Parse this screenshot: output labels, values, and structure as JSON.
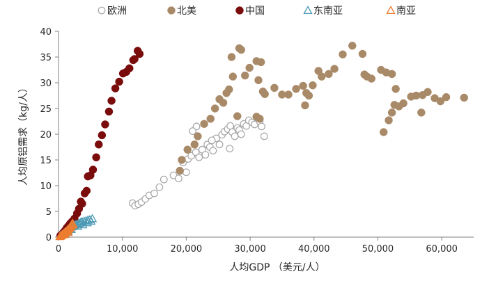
{
  "chart_data": {
    "type": "scatter",
    "title": "",
    "xlabel": "人均GDP （美元/人）",
    "ylabel": "人均原铝需求（kg/人）",
    "xlim": [
      0,
      65000
    ],
    "ylim": [
      0,
      40
    ],
    "x_ticks": [
      0,
      10000,
      20000,
      30000,
      40000,
      50000,
      60000
    ],
    "x_tick_labels": [
      "0",
      "10,000",
      "20,000",
      "30,000",
      "40,000",
      "50,000",
      "60,000"
    ],
    "y_ticks": [
      0,
      5,
      10,
      15,
      20,
      25,
      30,
      35,
      40
    ],
    "y_tick_labels": [
      "0",
      "5",
      "10",
      "15",
      "20",
      "25",
      "30",
      "35",
      "40"
    ],
    "grid": false,
    "legend_position": "top",
    "series": [
      {
        "name": "欧洲",
        "marker": "circle-open",
        "color": "#a6a6a6",
        "points": [
          [
            11600,
            6.6
          ],
          [
            12000,
            6.1
          ],
          [
            12500,
            6.4
          ],
          [
            13000,
            6.8
          ],
          [
            13600,
            7.4
          ],
          [
            14200,
            8.1
          ],
          [
            15000,
            8.5
          ],
          [
            15800,
            9.7
          ],
          [
            16500,
            11.2
          ],
          [
            18000,
            12.0
          ],
          [
            18800,
            11.4
          ],
          [
            20000,
            12.6
          ],
          [
            19500,
            14.5
          ],
          [
            20300,
            15.2
          ],
          [
            20800,
            15.8
          ],
          [
            21500,
            16.5
          ],
          [
            22000,
            15.5
          ],
          [
            22500,
            17.0
          ],
          [
            23000,
            16.0
          ],
          [
            23300,
            18.0
          ],
          [
            23700,
            17.5
          ],
          [
            24200,
            16.8
          ],
          [
            24700,
            19.2
          ],
          [
            25200,
            18.0
          ],
          [
            25600,
            19.9
          ],
          [
            26000,
            20.5
          ],
          [
            26500,
            21.0
          ],
          [
            26900,
            21.6
          ],
          [
            27200,
            20.4
          ],
          [
            27600,
            19.6
          ],
          [
            28000,
            21.2
          ],
          [
            28300,
            20.8
          ],
          [
            28600,
            20.0
          ],
          [
            29000,
            22.0
          ],
          [
            29400,
            21.6
          ],
          [
            29800,
            22.7
          ],
          [
            30300,
            22.3
          ],
          [
            30700,
            21.9
          ],
          [
            31100,
            23.1
          ],
          [
            31500,
            22.5
          ],
          [
            31800,
            21.5
          ],
          [
            32200,
            19.6
          ],
          [
            21600,
            21.5
          ],
          [
            26800,
            17.2
          ],
          [
            21000,
            20.6
          ],
          [
            24000,
            18.8
          ]
        ]
      },
      {
        "name": "北美",
        "marker": "circle-filled",
        "color": "#a98a68",
        "points": [
          [
            19000,
            12.9
          ],
          [
            19300,
            15.0
          ],
          [
            20200,
            17.0
          ],
          [
            21300,
            18.0
          ],
          [
            21800,
            19.6
          ],
          [
            22800,
            22.0
          ],
          [
            23800,
            23.0
          ],
          [
            24500,
            25.0
          ],
          [
            25200,
            26.8
          ],
          [
            25800,
            26.1
          ],
          [
            26300,
            28.0
          ],
          [
            26700,
            28.7
          ],
          [
            27300,
            31.2
          ],
          [
            28000,
            23.5
          ],
          [
            28300,
            36.7
          ],
          [
            28600,
            36.4
          ],
          [
            29200,
            31.4
          ],
          [
            29900,
            32.9
          ],
          [
            31000,
            34.2
          ],
          [
            31300,
            30.5
          ],
          [
            31700,
            34.0
          ],
          [
            32000,
            28.3
          ],
          [
            31000,
            23.4
          ],
          [
            32300,
            27.8
          ],
          [
            33800,
            29.0
          ],
          [
            35000,
            27.7
          ],
          [
            36000,
            27.7
          ],
          [
            37200,
            28.8
          ],
          [
            38300,
            29.4
          ],
          [
            38800,
            28.0
          ],
          [
            39200,
            27.5
          ],
          [
            39800,
            29.5
          ],
          [
            38600,
            25.6
          ],
          [
            40700,
            32.3
          ],
          [
            41200,
            31.2
          ],
          [
            42300,
            31.7
          ],
          [
            43200,
            32.7
          ],
          [
            44500,
            35.5
          ],
          [
            46000,
            37.2
          ],
          [
            47600,
            35.6
          ],
          [
            47900,
            31.6
          ],
          [
            48300,
            31.2
          ],
          [
            49000,
            30.8
          ],
          [
            50500,
            32.5
          ],
          [
            51300,
            32.0
          ],
          [
            52200,
            31.7
          ],
          [
            52800,
            28.8
          ],
          [
            52600,
            25.7
          ],
          [
            53300,
            25.4
          ],
          [
            54000,
            26.0
          ],
          [
            55200,
            27.3
          ],
          [
            56000,
            27.5
          ],
          [
            57000,
            27.6
          ],
          [
            57800,
            28.2
          ],
          [
            58900,
            27.0
          ],
          [
            59800,
            26.4
          ],
          [
            60700,
            27.2
          ],
          [
            63500,
            27.1
          ],
          [
            50900,
            20.4
          ],
          [
            51700,
            22.7
          ],
          [
            52200,
            24.2
          ],
          [
            56800,
            24.2
          ],
          [
            27100,
            35.0
          ],
          [
            31500,
            23.0
          ]
        ]
      },
      {
        "name": "中国",
        "marker": "circle-filled",
        "color": "#7a0c0c",
        "points": [
          [
            300,
            0.3
          ],
          [
            500,
            0.5
          ],
          [
            700,
            0.8
          ],
          [
            900,
            1.1
          ],
          [
            1100,
            1.4
          ],
          [
            1300,
            1.8
          ],
          [
            1500,
            2.1
          ],
          [
            1800,
            2.6
          ],
          [
            2100,
            3.0
          ],
          [
            2500,
            3.6
          ],
          [
            2900,
            4.6
          ],
          [
            3200,
            5.5
          ],
          [
            3700,
            6.5
          ],
          [
            4100,
            8.5
          ],
          [
            4600,
            11.8
          ],
          [
            5000,
            12.0
          ],
          [
            5400,
            13.1
          ],
          [
            5900,
            15.5
          ],
          [
            6300,
            18.0
          ],
          [
            6800,
            19.8
          ],
          [
            7300,
            21.9
          ],
          [
            7900,
            24.4
          ],
          [
            8300,
            26.5
          ],
          [
            8900,
            28.9
          ],
          [
            9500,
            30.2
          ],
          [
            10100,
            31.8
          ],
          [
            10600,
            32.1
          ],
          [
            11100,
            32.8
          ],
          [
            11700,
            34.4
          ],
          [
            11900,
            34.6
          ],
          [
            12400,
            36.2
          ],
          [
            12700,
            35.6
          ],
          [
            3500,
            6.9
          ],
          [
            4400,
            9.0
          ]
        ]
      },
      {
        "name": "东南亚",
        "marker": "triangle-open",
        "color": "#4e9ab5",
        "points": [
          [
            300,
            0.3
          ],
          [
            500,
            0.4
          ],
          [
            700,
            0.6
          ],
          [
            900,
            0.8
          ],
          [
            1100,
            1.0
          ],
          [
            1300,
            1.2
          ],
          [
            1500,
            1.4
          ],
          [
            1700,
            1.6
          ],
          [
            1900,
            1.8
          ],
          [
            2100,
            2.0
          ],
          [
            2300,
            2.2
          ],
          [
            2500,
            2.3
          ],
          [
            2700,
            2.4
          ],
          [
            2900,
            2.5
          ],
          [
            3100,
            2.6
          ],
          [
            3300,
            2.7
          ],
          [
            3500,
            2.9
          ],
          [
            3700,
            3.0
          ],
          [
            4000,
            3.1
          ],
          [
            4300,
            3.2
          ],
          [
            4600,
            3.3
          ],
          [
            4900,
            3.4
          ],
          [
            5100,
            3.1
          ],
          [
            5300,
            3.6
          ],
          [
            3800,
            2.4
          ],
          [
            3000,
            2.1
          ],
          [
            2000,
            1.5
          ],
          [
            1500,
            1.1
          ],
          [
            1000,
            0.7
          ],
          [
            4500,
            2.8
          ]
        ]
      },
      {
        "name": "南亚",
        "marker": "triangle-open",
        "color": "#ed7d31",
        "points": [
          [
            200,
            0.1
          ],
          [
            300,
            0.2
          ],
          [
            400,
            0.3
          ],
          [
            500,
            0.4
          ],
          [
            600,
            0.5
          ],
          [
            700,
            0.6
          ],
          [
            800,
            0.7
          ],
          [
            900,
            0.8
          ],
          [
            1000,
            0.9
          ],
          [
            1100,
            1.0
          ],
          [
            1200,
            1.1
          ],
          [
            1300,
            1.2
          ],
          [
            1400,
            1.4
          ],
          [
            1500,
            1.5
          ],
          [
            1600,
            1.6
          ],
          [
            1700,
            1.8
          ],
          [
            1800,
            1.9
          ],
          [
            1900,
            2.1
          ],
          [
            2000,
            2.3
          ],
          [
            2100,
            2.5
          ],
          [
            2200,
            2.7
          ],
          [
            2300,
            2.4
          ],
          [
            1500,
            0.9
          ],
          [
            1000,
            0.5
          ]
        ]
      }
    ]
  }
}
